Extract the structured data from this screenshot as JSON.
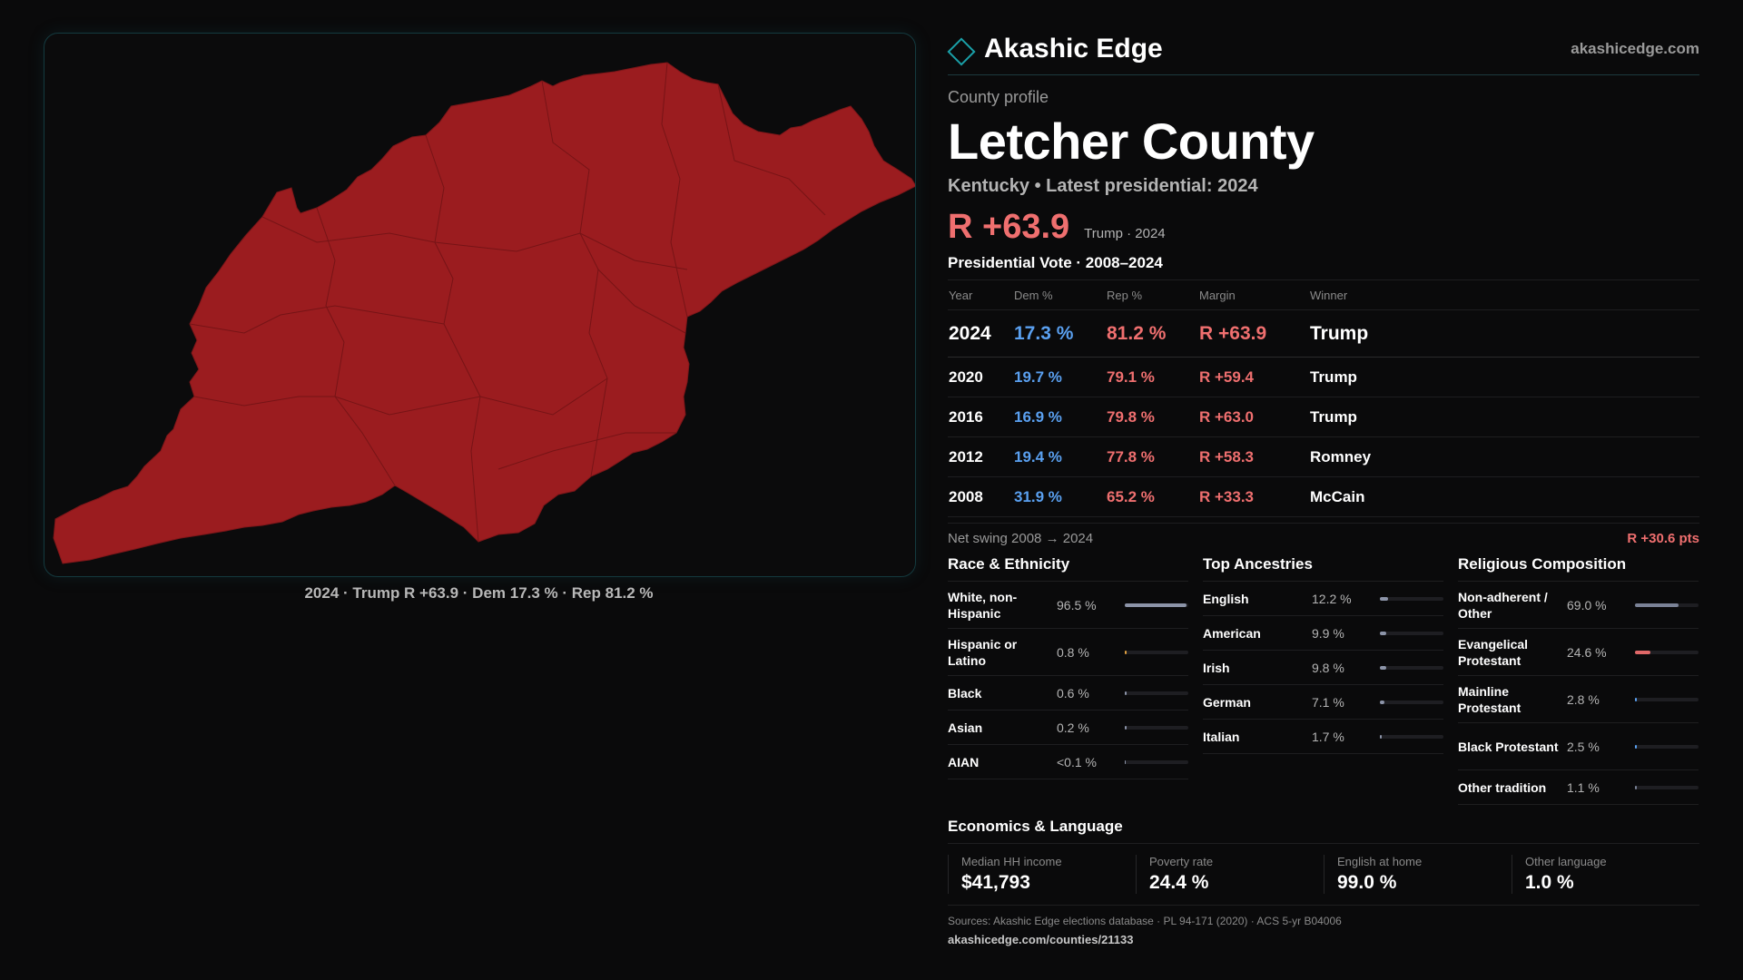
{
  "map": {
    "fill_color": "#9b1c1f",
    "caption": "2024 · Trump R +63.9 · Dem 17.3 % · Rep 81.2 %"
  },
  "brand": {
    "name": "Akashic Edge",
    "site": "akashicedge.com",
    "logo_icon": "diamond-icon"
  },
  "profile": {
    "eyebrow": "County profile",
    "title": "Letcher County",
    "subtitle": "Kentucky • Latest presidential: 2024",
    "headline_margin": "R +63.9",
    "headline_note": "Trump · 2024"
  },
  "votes": {
    "title": "Presidential Vote · 2008–2024",
    "headers": {
      "year": "Year",
      "dem": "Dem %",
      "rep": "Rep %",
      "margin": "Margin",
      "winner": "Winner"
    },
    "rows": [
      {
        "year": "2024",
        "dem": "17.3 %",
        "rep": "81.2 %",
        "margin": "R +63.9",
        "winner": "Trump"
      },
      {
        "year": "2020",
        "dem": "19.7 %",
        "rep": "79.1 %",
        "margin": "R +59.4",
        "winner": "Trump"
      },
      {
        "year": "2016",
        "dem": "16.9 %",
        "rep": "79.8 %",
        "margin": "R +63.0",
        "winner": "Trump"
      },
      {
        "year": "2012",
        "dem": "19.4 %",
        "rep": "77.8 %",
        "margin": "R +58.3",
        "winner": "Romney"
      },
      {
        "year": "2008",
        "dem": "31.9 %",
        "rep": "65.2 %",
        "margin": "R +33.3",
        "winner": "McCain"
      }
    ],
    "swing_label": "Net swing 2008 → 2024",
    "swing_value": "R +30.6 pts"
  },
  "race": {
    "title": "Race & Ethnicity",
    "items": [
      {
        "label": "White, non-Hispanic",
        "value": "96.5 %",
        "pct": 96.5,
        "color": "#8c94a8"
      },
      {
        "label": "Hispanic or Latino",
        "value": "0.8 %",
        "pct": 0.8,
        "color": "#e0a040"
      },
      {
        "label": "Black",
        "value": "0.6 %",
        "pct": 0.6,
        "color": "#8c94a8"
      },
      {
        "label": "Asian",
        "value": "0.2 %",
        "pct": 0.2,
        "color": "#8c94a8"
      },
      {
        "label": "AIAN",
        "value": "<0.1 %",
        "pct": 0,
        "color": "#8c94a8"
      }
    ]
  },
  "ancestry": {
    "title": "Top Ancestries",
    "items": [
      {
        "label": "English",
        "value": "12.2 %",
        "pct": 12.2,
        "color": "#8c94a8"
      },
      {
        "label": "American",
        "value": "9.9 %",
        "pct": 9.9,
        "color": "#8c94a8"
      },
      {
        "label": "Irish",
        "value": "9.8 %",
        "pct": 9.8,
        "color": "#8c94a8"
      },
      {
        "label": "German",
        "value": "7.1 %",
        "pct": 7.1,
        "color": "#8c94a8"
      },
      {
        "label": "Italian",
        "value": "1.7 %",
        "pct": 1.7,
        "color": "#8c94a8"
      }
    ]
  },
  "religion": {
    "title": "Religious Composition",
    "items": [
      {
        "label": "Non-adherent / Other",
        "value": "69.0 %",
        "pct": 69.0,
        "color": "#7a8296"
      },
      {
        "label": "Evangelical Protestant",
        "value": "24.6 %",
        "pct": 24.6,
        "color": "#e06868"
      },
      {
        "label": "Mainline Protestant",
        "value": "2.8 %",
        "pct": 2.8,
        "color": "#5aa0f0"
      },
      {
        "label": "Black Protestant",
        "value": "2.5 %",
        "pct": 2.5,
        "color": "#5aa0f0"
      },
      {
        "label": "Other tradition",
        "value": "1.1 %",
        "pct": 1.1,
        "color": "#7a8296"
      }
    ]
  },
  "economics": {
    "title": "Economics & Language",
    "items": [
      {
        "label": "Median HH income",
        "value": "$41,793"
      },
      {
        "label": "Poverty rate",
        "value": "24.4 %"
      },
      {
        "label": "English at home",
        "value": "99.0 %"
      },
      {
        "label": "Other language",
        "value": "1.0 %"
      }
    ]
  },
  "footer": {
    "sources": "Sources: Akashic Edge elections database · PL 94-171 (2020) · ACS 5-yr B04006",
    "url": "akashicedge.com/counties/21133"
  }
}
